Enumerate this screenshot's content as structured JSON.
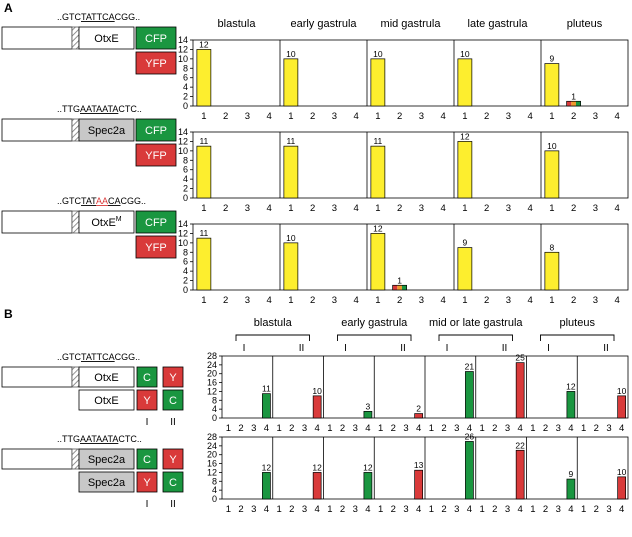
{
  "panels": [
    {
      "label": "A",
      "stages": [
        "blastula",
        "early gastrula",
        "mid gastrula",
        "late gastrula",
        "pluteus"
      ],
      "y_ticks": [
        "0",
        "2",
        "4",
        "6",
        "8",
        "10",
        "12",
        "14"
      ],
      "x_ticks": [
        "1",
        "2",
        "3",
        "4"
      ],
      "rows": [
        {
          "sequence": [
            {
              "t": "..GTC",
              "u": false,
              "red": false
            },
            {
              "t": "TATTCA",
              "u": true,
              "red": false
            },
            {
              "t": "CGG..",
              "u": false,
              "red": false
            }
          ],
          "gene_main": "OtxE",
          "gene_sup": "",
          "gene_fill": "#ffffff",
          "reporters": [
            {
              "label": "CFP",
              "color": "#1a9640"
            },
            {
              "label": "YFP",
              "color": "#d93a3a"
            }
          ]
        },
        {
          "sequence": [
            {
              "t": "..TTG",
              "u": false,
              "red": false
            },
            {
              "t": "AATAATA",
              "u": true,
              "red": false
            },
            {
              "t": "CTC..",
              "u": false,
              "red": false
            }
          ],
          "gene_main": "Spec2a",
          "gene_sup": "",
          "gene_fill": "#c8c8c8",
          "reporters": [
            {
              "label": "CFP",
              "color": "#1a9640"
            },
            {
              "label": "YFP",
              "color": "#d93a3a"
            }
          ]
        },
        {
          "sequence": [
            {
              "t": "..GTC",
              "u": false,
              "red": false
            },
            {
              "t": "TAT",
              "u": true,
              "red": false
            },
            {
              "t": "AA",
              "u": true,
              "red": true
            },
            {
              "t": "CA",
              "u": true,
              "red": false
            },
            {
              "t": "CGG..",
              "u": false,
              "red": false
            }
          ],
          "gene_main": "OtxE",
          "gene_sup": "M",
          "gene_fill": "#ffffff",
          "reporters": [
            {
              "label": "CFP",
              "color": "#1a9640"
            },
            {
              "label": "YFP",
              "color": "#d93a3a"
            }
          ]
        }
      ]
    },
    {
      "label": "B",
      "stages": [
        "blastula",
        "early gastrula",
        "mid or late gastrula",
        "pluteus"
      ],
      "sub_labels": [
        "I",
        "II"
      ],
      "y_ticks": [
        "0",
        "4",
        "8",
        "12",
        "16",
        "20",
        "24",
        "28"
      ],
      "x_ticks": [
        "1",
        "2",
        "3",
        "4"
      ],
      "rows": [
        {
          "sequence": [
            {
              "t": "..GTC",
              "u": false,
              "red": false
            },
            {
              "t": "TATTCA",
              "u": true,
              "red": false
            },
            {
              "t": "CGG..",
              "u": false,
              "red": false
            }
          ],
          "gene_main": "OtxE",
          "gene_second": "OtxE",
          "gene_fill": "#ffffff",
          "combo_top": [
            {
              "label": "C",
              "color": "#1a9640"
            },
            {
              "label": "Y",
              "color": "#d93a3a"
            }
          ],
          "combo_bottom": [
            {
              "label": "Y",
              "color": "#d93a3a"
            },
            {
              "label": "C",
              "color": "#1a9640"
            }
          ],
          "combo_labels": [
            "I",
            "II"
          ]
        },
        {
          "sequence": [
            {
              "t": "..TTG",
              "u": false,
              "red": false
            },
            {
              "t": "AATAATA",
              "u": true,
              "red": false
            },
            {
              "t": "CTC..",
              "u": false,
              "red": false
            }
          ],
          "gene_main": "Spec2a",
          "gene_second": "Spec2a",
          "gene_fill": "#c8c8c8",
          "combo_top": [
            {
              "label": "C",
              "color": "#1a9640"
            },
            {
              "label": "Y",
              "color": "#d93a3a"
            }
          ],
          "combo_bottom": [
            {
              "label": "Y",
              "color": "#d93a3a"
            },
            {
              "label": "C",
              "color": "#1a9640"
            }
          ],
          "combo_labels": [
            "I",
            "II"
          ]
        }
      ]
    }
  ],
  "colors": {
    "yellow": "#fdee2e",
    "green": "#1a9640",
    "red": "#d93a3a",
    "orange": "#f09a2a"
  },
  "chart_data": [
    {
      "type": "bar",
      "panel": "A",
      "row": 1,
      "ylim": [
        0,
        14
      ],
      "categories": [
        "1",
        "2",
        "3",
        "4"
      ],
      "groups": [
        {
          "stage": "blastula",
          "bars": [
            {
              "x": "1",
              "value": 12,
              "label": "12",
              "colors": [
                "#fdee2e"
              ]
            }
          ]
        },
        {
          "stage": "early gastrula",
          "bars": [
            {
              "x": "1",
              "value": 10,
              "label": "10",
              "colors": [
                "#fdee2e"
              ]
            }
          ]
        },
        {
          "stage": "mid gastrula",
          "bars": [
            {
              "x": "1",
              "value": 10,
              "label": "10",
              "colors": [
                "#fdee2e"
              ]
            }
          ]
        },
        {
          "stage": "late gastrula",
          "bars": [
            {
              "x": "1",
              "value": 10,
              "label": "10",
              "colors": [
                "#fdee2e"
              ]
            }
          ]
        },
        {
          "stage": "pluteus",
          "bars": [
            {
              "x": "1",
              "value": 9,
              "label": "9",
              "colors": [
                "#fdee2e"
              ]
            },
            {
              "x": "2",
              "value": 1,
              "label": "1",
              "colors": [
                "#d93a3a",
                "#f09a2a",
                "#1a9640"
              ]
            }
          ]
        }
      ]
    },
    {
      "type": "bar",
      "panel": "A",
      "row": 2,
      "ylim": [
        0,
        14
      ],
      "categories": [
        "1",
        "2",
        "3",
        "4"
      ],
      "groups": [
        {
          "stage": "blastula",
          "bars": [
            {
              "x": "1",
              "value": 11,
              "label": "11",
              "colors": [
                "#fdee2e"
              ]
            }
          ]
        },
        {
          "stage": "early gastrula",
          "bars": [
            {
              "x": "1",
              "value": 11,
              "label": "11",
              "colors": [
                "#fdee2e"
              ]
            }
          ]
        },
        {
          "stage": "mid gastrula",
          "bars": [
            {
              "x": "1",
              "value": 11,
              "label": "11",
              "colors": [
                "#fdee2e"
              ]
            }
          ]
        },
        {
          "stage": "late gastrula",
          "bars": [
            {
              "x": "1",
              "value": 12,
              "label": "12",
              "colors": [
                "#fdee2e"
              ]
            }
          ]
        },
        {
          "stage": "pluteus",
          "bars": [
            {
              "x": "1",
              "value": 10,
              "label": "10",
              "colors": [
                "#fdee2e"
              ]
            }
          ]
        }
      ]
    },
    {
      "type": "bar",
      "panel": "A",
      "row": 3,
      "ylim": [
        0,
        14
      ],
      "categories": [
        "1",
        "2",
        "3",
        "4"
      ],
      "groups": [
        {
          "stage": "blastula",
          "bars": [
            {
              "x": "1",
              "value": 11,
              "label": "11",
              "colors": [
                "#fdee2e"
              ]
            }
          ]
        },
        {
          "stage": "early gastrula",
          "bars": [
            {
              "x": "1",
              "value": 10,
              "label": "10",
              "colors": [
                "#fdee2e"
              ]
            }
          ]
        },
        {
          "stage": "mid gastrula",
          "bars": [
            {
              "x": "1",
              "value": 12,
              "label": "12",
              "colors": [
                "#fdee2e"
              ]
            },
            {
              "x": "2",
              "value": 1,
              "label": "1",
              "colors": [
                "#d93a3a",
                "#f09a2a",
                "#1a9640"
              ]
            }
          ]
        },
        {
          "stage": "late gastrula",
          "bars": [
            {
              "x": "1",
              "value": 9,
              "label": "9",
              "colors": [
                "#fdee2e"
              ]
            }
          ]
        },
        {
          "stage": "pluteus",
          "bars": [
            {
              "x": "1",
              "value": 8,
              "label": "8",
              "colors": [
                "#fdee2e"
              ]
            }
          ]
        }
      ]
    },
    {
      "type": "bar",
      "panel": "B",
      "row": 1,
      "ylim": [
        0,
        28
      ],
      "categories": [
        "1",
        "2",
        "3",
        "4"
      ],
      "groups": [
        {
          "stage": "blastula",
          "sub": "I",
          "bars": [
            {
              "x": "4",
              "value": 11,
              "label": "11",
              "colors": [
                "#1a9640"
              ]
            }
          ]
        },
        {
          "stage": "blastula",
          "sub": "II",
          "bars": [
            {
              "x": "4",
              "value": 10,
              "label": "10",
              "colors": [
                "#d93a3a"
              ]
            }
          ]
        },
        {
          "stage": "early gastrula",
          "sub": "I",
          "bars": [
            {
              "x": "4",
              "value": 3,
              "label": "3",
              "colors": [
                "#1a9640"
              ]
            }
          ]
        },
        {
          "stage": "early gastrula",
          "sub": "II",
          "bars": [
            {
              "x": "4",
              "value": 2,
              "label": "2",
              "colors": [
                "#d93a3a"
              ]
            }
          ]
        },
        {
          "stage": "mid or late gastrula",
          "sub": "I",
          "bars": [
            {
              "x": "4",
              "value": 21,
              "label": "21",
              "colors": [
                "#1a9640"
              ]
            }
          ]
        },
        {
          "stage": "mid or late gastrula",
          "sub": "II",
          "bars": [
            {
              "x": "4",
              "value": 25,
              "label": "25",
              "colors": [
                "#d93a3a"
              ]
            }
          ]
        },
        {
          "stage": "pluteus",
          "sub": "I",
          "bars": [
            {
              "x": "4",
              "value": 12,
              "label": "12",
              "colors": [
                "#1a9640"
              ]
            }
          ]
        },
        {
          "stage": "pluteus",
          "sub": "II",
          "bars": [
            {
              "x": "4",
              "value": 10,
              "label": "10",
              "colors": [
                "#d93a3a"
              ]
            }
          ]
        }
      ]
    },
    {
      "type": "bar",
      "panel": "B",
      "row": 2,
      "ylim": [
        0,
        28
      ],
      "categories": [
        "1",
        "2",
        "3",
        "4"
      ],
      "groups": [
        {
          "stage": "blastula",
          "sub": "I",
          "bars": [
            {
              "x": "4",
              "value": 12,
              "label": "12",
              "colors": [
                "#1a9640"
              ]
            }
          ]
        },
        {
          "stage": "blastula",
          "sub": "II",
          "bars": [
            {
              "x": "4",
              "value": 12,
              "label": "12",
              "colors": [
                "#d93a3a"
              ]
            }
          ]
        },
        {
          "stage": "early gastrula",
          "sub": "I",
          "bars": [
            {
              "x": "4",
              "value": 12,
              "label": "12",
              "colors": [
                "#1a9640"
              ]
            }
          ]
        },
        {
          "stage": "early gastrula",
          "sub": "II",
          "bars": [
            {
              "x": "4",
              "value": 13,
              "label": "13",
              "colors": [
                "#d93a3a"
              ]
            }
          ]
        },
        {
          "stage": "mid or late gastrula",
          "sub": "I",
          "bars": [
            {
              "x": "4",
              "value": 26,
              "label": "26",
              "colors": [
                "#1a9640"
              ]
            }
          ]
        },
        {
          "stage": "mid or late gastrula",
          "sub": "II",
          "bars": [
            {
              "x": "4",
              "value": 22,
              "label": "22",
              "colors": [
                "#d93a3a"
              ]
            }
          ]
        },
        {
          "stage": "pluteus",
          "sub": "I",
          "bars": [
            {
              "x": "4",
              "value": 9,
              "label": "9",
              "colors": [
                "#1a9640"
              ]
            }
          ]
        },
        {
          "stage": "pluteus",
          "sub": "II",
          "bars": [
            {
              "x": "4",
              "value": 10,
              "label": "10",
              "colors": [
                "#d93a3a"
              ]
            }
          ]
        }
      ]
    }
  ]
}
